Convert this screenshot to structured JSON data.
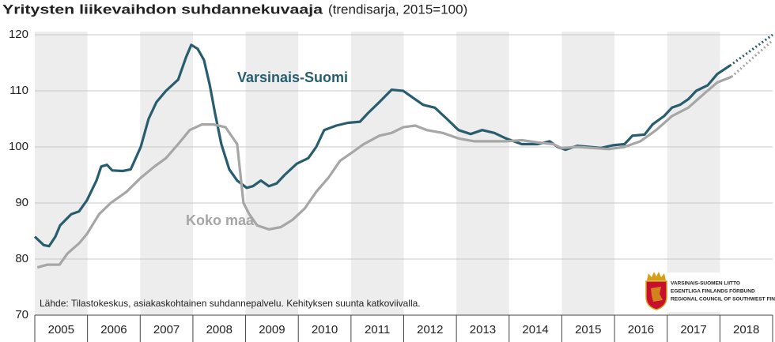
{
  "chart_data": {
    "type": "line",
    "title": "Yritysten liikevaihdon suhdannekuvaaja",
    "subtitle": "(trendisarja, 2015=100)",
    "source": "Lähde: Tilastokeskus, asiakaskohtainen suhdannepalvelu. Kehityksen suunta katkoviivalla.",
    "logo_lines": [
      "VARSINAIS-SUOMEN LIITTO",
      "EGENTLIGA FINLANDS FÖRBUND",
      "REGIONAL COUNCIL OF SOUTHWEST FINLAND"
    ],
    "xlim": [
      2005,
      2019
    ],
    "ylim": [
      70,
      120
    ],
    "yticks": [
      70,
      80,
      90,
      100,
      110,
      120
    ],
    "xticks": [
      {
        "value": 2005.5,
        "label": "2005"
      },
      {
        "value": 2006.5,
        "label": "2006"
      },
      {
        "value": 2007.5,
        "label": "2007"
      },
      {
        "value": 2008.5,
        "label": "2008"
      },
      {
        "value": 2009.5,
        "label": "2009"
      },
      {
        "value": 2010.5,
        "label": "2010"
      },
      {
        "value": 2011.5,
        "label": "2011"
      },
      {
        "value": 2012.5,
        "label": "2012"
      },
      {
        "value": 2013.5,
        "label": "2013"
      },
      {
        "value": 2014.5,
        "label": "2014"
      },
      {
        "value": 2015.5,
        "label": "2015"
      },
      {
        "value": 2016.5,
        "label": "2016"
      },
      {
        "value": 2017.5,
        "label": "2017"
      },
      {
        "value": 2018.5,
        "label": "2018"
      }
    ],
    "shaded_years": [
      2005,
      2007,
      2009,
      2011,
      2013,
      2015,
      2017
    ],
    "grid": true,
    "series": [
      {
        "name": "Varsinais-Suomi",
        "color": "#285d6e",
        "x": [
          2005.0,
          2005.17,
          2005.27,
          2005.39,
          2005.48,
          2005.69,
          2005.84,
          2005.99,
          2006.17,
          2006.26,
          2006.37,
          2006.47,
          2006.67,
          2006.82,
          2007.01,
          2007.16,
          2007.31,
          2007.49,
          2007.72,
          2007.87,
          2007.97,
          2008.09,
          2008.21,
          2008.32,
          2008.42,
          2008.54,
          2008.69,
          2008.84,
          2009.02,
          2009.14,
          2009.29,
          2009.44,
          2009.59,
          2009.74,
          2009.97,
          2010.19,
          2010.34,
          2010.49,
          2010.72,
          2010.94,
          2011.17,
          2011.32,
          2011.54,
          2011.77,
          2011.99,
          2012.14,
          2012.37,
          2012.59,
          2012.82,
          2013.04,
          2013.27,
          2013.49,
          2013.72,
          2013.94,
          2014.24,
          2014.54,
          2014.77,
          2014.92,
          2015.07,
          2015.29,
          2015.52,
          2015.74,
          2015.97,
          2016.19,
          2016.34,
          2016.57,
          2016.72,
          2016.94,
          2017.09,
          2017.24,
          2017.4,
          2017.55,
          2017.77,
          2017.95,
          2018.19
        ],
        "values": [
          84,
          82.5,
          82.3,
          84,
          86,
          88,
          88.5,
          90.5,
          94,
          96.5,
          96.8,
          95.8,
          95.7,
          96,
          100,
          105,
          108,
          110,
          112,
          116,
          118.2,
          117.5,
          115.5,
          111,
          106,
          100.5,
          96,
          94,
          92.7,
          93,
          94,
          93,
          93.5,
          95,
          97,
          98,
          100,
          103,
          103.8,
          104.3,
          104.5,
          106,
          108,
          110.2,
          110,
          109,
          107.5,
          107,
          105,
          103,
          102.3,
          103,
          102.5,
          101.5,
          100.5,
          100.5,
          101,
          100,
          99.5,
          100.2,
          100,
          99.8,
          100.3,
          100.5,
          102,
          102.2,
          104,
          105.5,
          107,
          107.5,
          108.5,
          110,
          111,
          113,
          114.5
        ],
        "trend_x": [
          2018.19,
          2019.0
        ],
        "trend_values": [
          114.5,
          120
        ]
      },
      {
        "name": "Koko maa",
        "color": "#a6a6a6",
        "x": [
          2005.05,
          2005.24,
          2005.47,
          2005.62,
          2005.84,
          2005.99,
          2006.22,
          2006.44,
          2006.74,
          2007.01,
          2007.27,
          2007.49,
          2007.72,
          2007.94,
          2008.17,
          2008.39,
          2008.62,
          2008.84,
          2008.96,
          2009.07,
          2009.22,
          2009.44,
          2009.67,
          2009.89,
          2010.12,
          2010.34,
          2010.57,
          2010.79,
          2011.02,
          2011.24,
          2011.54,
          2011.77,
          2011.99,
          2012.22,
          2012.44,
          2012.74,
          2013.04,
          2013.34,
          2013.64,
          2013.94,
          2014.24,
          2014.54,
          2014.84,
          2014.99,
          2015.29,
          2015.59,
          2015.89,
          2016.19,
          2016.49,
          2016.79,
          2017.09,
          2017.4,
          2017.7,
          2017.95,
          2018.22
        ],
        "values": [
          78.5,
          79,
          79,
          81,
          82.8,
          84.5,
          88,
          90,
          92,
          94.5,
          96.5,
          98,
          100.5,
          103,
          104,
          104,
          103.5,
          100.5,
          90,
          88,
          86,
          85.3,
          85.7,
          87,
          89,
          92,
          94.5,
          97.5,
          99,
          100.5,
          102,
          102.5,
          103.5,
          103.8,
          103,
          102.5,
          101.5,
          101,
          101,
          101,
          101.2,
          100.8,
          100.5,
          99.8,
          100,
          99.8,
          99.6,
          100,
          101,
          103,
          105.5,
          107,
          109.5,
          111.5,
          112.5
        ],
        "trend_x": [
          2018.22,
          2019.0
        ],
        "trend_values": [
          112.5,
          119
        ]
      }
    ]
  }
}
